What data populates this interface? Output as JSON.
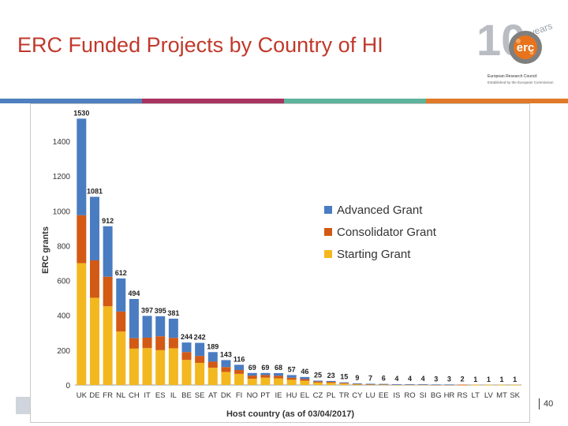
{
  "slide": {
    "title": "ERC Funded Projects by Country of HI",
    "page_number": "40"
  },
  "logo": {
    "number": "10",
    "word": "years",
    "mark": "erc",
    "line1": "European Research Council",
    "line2": "Established by the European Commission"
  },
  "colors": {
    "title": "#c0392b",
    "advanced": "#4a7cc1",
    "consolidator": "#d35a14",
    "starting": "#f3b81f",
    "stripe1": "#4f7fbf",
    "stripe2": "#a8335e",
    "stripe3": "#5db39b",
    "stripe4": "#e07a2a"
  },
  "chart_data": {
    "type": "bar",
    "stacked": true,
    "xlabel": "Host country (as of 03/04/2017)",
    "ylabel": "ERC grants",
    "ylim": [
      0,
      1550
    ],
    "yticks": [
      0,
      200,
      400,
      600,
      800,
      1000,
      1200,
      1400
    ],
    "grid": false,
    "legend_position": "right",
    "categories": [
      "UK",
      "DE",
      "FR",
      "NL",
      "CH",
      "IT",
      "ES",
      "IL",
      "BE",
      "SE",
      "AT",
      "DK",
      "FI",
      "NO",
      "PT",
      "IE",
      "HU",
      "EL",
      "CZ",
      "PL",
      "TR",
      "CY",
      "LU",
      "EE",
      "IS",
      "RO",
      "SI",
      "BG",
      "HR",
      "RS",
      "LT",
      "LV",
      "MT",
      "SK"
    ],
    "totals": [
      1530,
      1081,
      912,
      612,
      494,
      397,
      395,
      381,
      244,
      242,
      189,
      143,
      116,
      69,
      69,
      68,
      57,
      46,
      25,
      23,
      15,
      9,
      7,
      6,
      4,
      4,
      4,
      3,
      3,
      2,
      1,
      1,
      1,
      1
    ],
    "series": [
      {
        "name": "Advanced Grant",
        "color": "#4a7cc1",
        "values": [
          555,
          365,
          290,
          190,
          225,
          125,
          115,
          110,
          55,
          75,
          55,
          40,
          30,
          15,
          12,
          15,
          15,
          12,
          5,
          5,
          3,
          2,
          2,
          1,
          1,
          1,
          1,
          1,
          1,
          0,
          0,
          0,
          0,
          0
        ]
      },
      {
        "name": "Consolidator Grant",
        "color": "#d35a14",
        "values": [
          275,
          215,
          170,
          115,
          60,
          60,
          80,
          60,
          45,
          40,
          35,
          28,
          22,
          18,
          15,
          15,
          12,
          10,
          6,
          6,
          4,
          2,
          2,
          2,
          1,
          1,
          1,
          1,
          1,
          1,
          0,
          0,
          0,
          0
        ]
      },
      {
        "name": "Starting Grant",
        "color": "#f3b81f",
        "values": [
          700,
          501,
          452,
          307,
          209,
          212,
          200,
          211,
          144,
          127,
          99,
          75,
          64,
          36,
          42,
          38,
          30,
          24,
          14,
          12,
          8,
          5,
          3,
          3,
          2,
          2,
          2,
          1,
          1,
          1,
          1,
          1,
          1,
          1
        ]
      }
    ]
  }
}
